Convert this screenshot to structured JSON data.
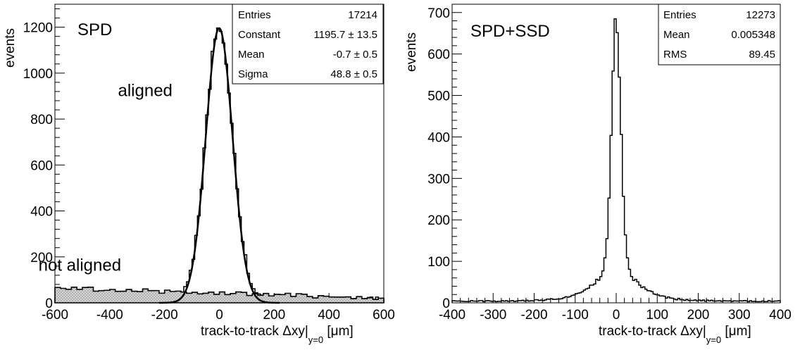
{
  "chart_data": [
    {
      "type": "histogram",
      "label": "SPD",
      "xlabel_main": "track-to-track Δxy|",
      "xlabel_sub": "y=0",
      "xlabel_unit": " [μm]",
      "ylabel": "events",
      "xlim": [
        -600,
        600
      ],
      "ylim": [
        0,
        1300
      ],
      "xticks": [
        "-600",
        "-400",
        "-200",
        "0",
        "200",
        "400",
        "600"
      ],
      "xtick_values": [
        -600,
        -400,
        -200,
        0,
        200,
        400,
        600
      ],
      "yticks": [
        "0",
        "200",
        "400",
        "600",
        "800",
        "1000",
        "1200"
      ],
      "ytick_values": [
        0,
        200,
        400,
        600,
        800,
        1000,
        1200
      ],
      "annotations": [
        {
          "text": "aligned",
          "x": -370,
          "y": 900
        },
        {
          "text": "not aligned",
          "x": -660,
          "y": 140
        }
      ],
      "stats": [
        {
          "name": "Entries",
          "value": "17214"
        },
        {
          "name": "Constant",
          "value": "1195.7 ± 13.5"
        },
        {
          "name": "Mean",
          "value": "-0.7 ± 0.5"
        },
        {
          "name": "Sigma",
          "value": "48.8 ± 0.5"
        }
      ],
      "series": [
        {
          "role": "aligned",
          "kind": "gaussian-histogram",
          "constant": 1195.7,
          "mean": -0.7,
          "sigma": 48.8,
          "tail_base": 18,
          "bin_width": 10
        },
        {
          "role": "not aligned",
          "kind": "shaded-flat-histogram",
          "start": 65,
          "end": 20,
          "bin_width": 20
        }
      ],
      "fit": {
        "constant": 1195.7,
        "mean": -0.7,
        "sigma": 48.8
      }
    },
    {
      "type": "histogram",
      "label": "SPD+SSD",
      "xlabel_main": "track-to-track Δxy|",
      "xlabel_sub": "y=0",
      "xlabel_unit": " [μm]",
      "ylabel": "events",
      "xlim": [
        -400,
        400
      ],
      "ylim": [
        0,
        720
      ],
      "xticks": [
        "-400",
        "-300",
        "-200",
        "-100",
        "0",
        "100",
        "200",
        "300",
        "400"
      ],
      "xtick_values": [
        -400,
        -300,
        -200,
        -100,
        0,
        100,
        200,
        300,
        400
      ],
      "yticks": [
        "0",
        "100",
        "200",
        "300",
        "400",
        "500",
        "600",
        "700"
      ],
      "ytick_values": [
        0,
        100,
        200,
        300,
        400,
        500,
        600,
        700
      ],
      "stats": [
        {
          "name": "Entries",
          "value": "12273"
        },
        {
          "name": "Mean",
          "value": "0.005348"
        },
        {
          "name": "RMS",
          "value": "89.45"
        }
      ],
      "series": [
        {
          "role": "main",
          "kind": "peaked-histogram",
          "peak": 685,
          "core_width": 9,
          "tail_amp": 140,
          "tail_scale": 45,
          "floor": 4,
          "bin_width": 5
        }
      ]
    }
  ]
}
